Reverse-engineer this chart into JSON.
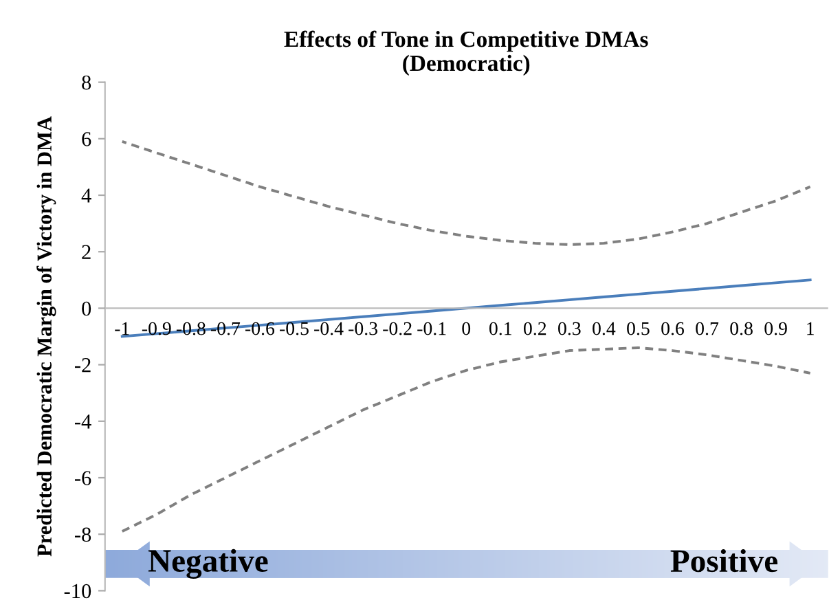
{
  "chart_data": {
    "type": "line",
    "title": "Effects of Tone in Competitive DMAs\n(Democratic)",
    "ylabel": "Predicted Democratic Margin of Victory in DMA",
    "categories": [
      "-1",
      "-0.9",
      "-0.8",
      "-0.7",
      "-0.6",
      "-0.5",
      "-0.4",
      "-0.3",
      "-0.2",
      "-0.1",
      "0",
      "0.1",
      "0.2",
      "0.3",
      "0.4",
      "0.5",
      "0.6",
      "0.7",
      "0.8",
      "0.9",
      "1"
    ],
    "series": [
      {
        "color": "#808080",
        "line_style": "dashed",
        "values": [
          5.9,
          5.5,
          5.1,
          4.7,
          4.3,
          3.95,
          3.6,
          3.3,
          3.0,
          2.75,
          2.55,
          2.4,
          2.3,
          2.25,
          2.3,
          2.45,
          2.7,
          3.0,
          3.4,
          3.8,
          4.3
        ]
      },
      {
        "color": "#4a7ebb",
        "line_style": "solid",
        "values": [
          -1.0,
          -0.9,
          -0.8,
          -0.7,
          -0.6,
          -0.5,
          -0.4,
          -0.3,
          -0.2,
          -0.1,
          0.0,
          0.1,
          0.2,
          0.3,
          0.4,
          0.5,
          0.6,
          0.7,
          0.8,
          0.9,
          1.0
        ]
      },
      {
        "color": "#808080",
        "line_style": "dashed",
        "values": [
          -7.9,
          -7.3,
          -6.6,
          -6.0,
          -5.4,
          -4.8,
          -4.2,
          -3.6,
          -3.1,
          -2.6,
          -2.2,
          -1.9,
          -1.7,
          -1.5,
          -1.45,
          -1.4,
          -1.5,
          -1.65,
          -1.85,
          -2.05,
          -2.3
        ]
      }
    ],
    "ylim": [
      -10,
      8
    ],
    "yticks": [
      -10,
      -8,
      -6,
      -4,
      -2,
      0,
      2,
      4,
      6,
      8
    ],
    "grid": false,
    "legend": false,
    "marker": "none",
    "annotations": [
      "Negative",
      "Positive"
    ]
  }
}
